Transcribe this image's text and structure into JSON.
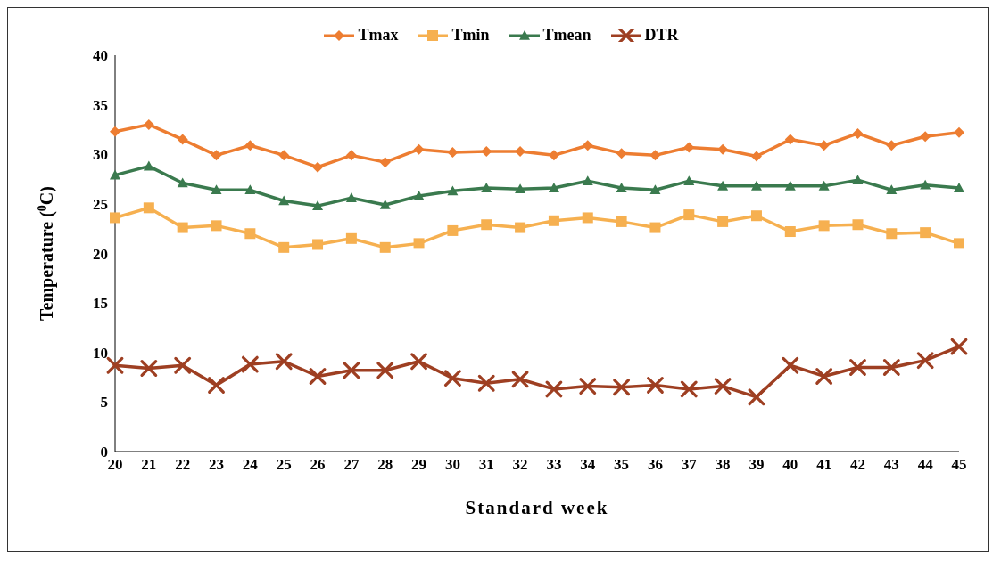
{
  "chart_data": {
    "type": "line",
    "xlabel": "Standard week",
    "ylabel": "Temperature ($^{0}$C)",
    "categories": [
      "20",
      "21",
      "22",
      "23",
      "24",
      "25",
      "26",
      "27",
      "28",
      "29",
      "30",
      "31",
      "32",
      "33",
      "34",
      "35",
      "36",
      "37",
      "38",
      "39",
      "40",
      "41",
      "42",
      "43",
      "44",
      "45"
    ],
    "ylim": [
      0,
      40
    ],
    "yticks": [
      0,
      5,
      10,
      15,
      20,
      25,
      30,
      35,
      40
    ],
    "grid": false,
    "legend": "top",
    "series": [
      {
        "name": "Tmax",
        "color": "#ed7d31",
        "marker": "diamond",
        "values": [
          32.3,
          33.0,
          31.5,
          29.9,
          30.9,
          29.9,
          28.7,
          29.9,
          29.2,
          30.5,
          30.2,
          30.3,
          30.3,
          29.9,
          30.9,
          30.1,
          29.9,
          30.7,
          30.5,
          29.8,
          31.5,
          30.9,
          32.1,
          30.9,
          31.8,
          32.2
        ]
      },
      {
        "name": "Tmin",
        "color": "#f6b050",
        "marker": "square",
        "values": [
          23.6,
          24.6,
          22.6,
          22.8,
          22.0,
          20.6,
          20.9,
          21.5,
          20.6,
          21.0,
          22.3,
          22.9,
          22.6,
          23.3,
          23.6,
          23.2,
          22.6,
          23.9,
          23.2,
          23.8,
          22.2,
          22.8,
          22.9,
          22.0,
          22.1,
          21.0
        ]
      },
      {
        "name": "Tmean",
        "color": "#3a7a4e",
        "marker": "triangle",
        "values": [
          27.9,
          28.8,
          27.1,
          26.4,
          26.4,
          25.3,
          24.8,
          25.6,
          24.9,
          25.8,
          26.3,
          26.6,
          26.5,
          26.6,
          27.3,
          26.6,
          26.4,
          27.3,
          26.8,
          26.8,
          26.8,
          26.8,
          27.4,
          26.4,
          26.9,
          26.6
        ]
      },
      {
        "name": "DTR",
        "color": "#9e3f22",
        "marker": "cross",
        "values": [
          8.7,
          8.4,
          8.7,
          6.7,
          8.8,
          9.1,
          7.6,
          8.2,
          8.2,
          9.1,
          7.4,
          6.9,
          7.3,
          6.3,
          6.6,
          6.5,
          6.7,
          6.3,
          6.6,
          5.5,
          8.7,
          7.6,
          8.5,
          8.5,
          9.2,
          10.6
        ]
      }
    ]
  }
}
